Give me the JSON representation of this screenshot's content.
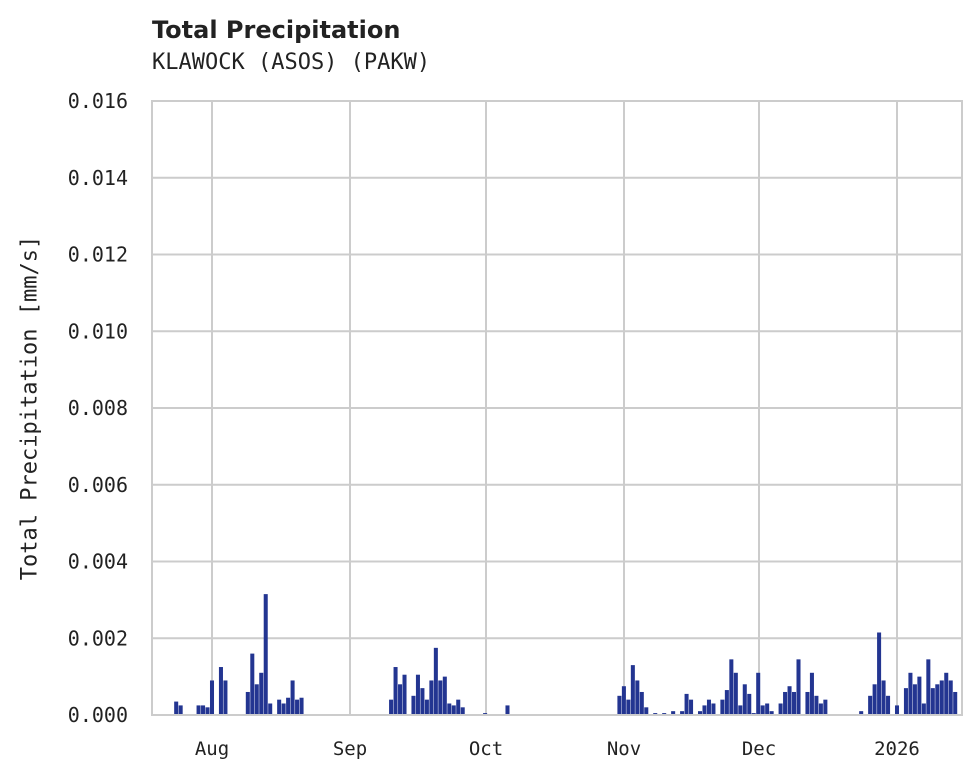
{
  "header": {
    "title": "Total Precipitation",
    "subtitle": "KLAWOCK (ASOS) (PAKW)"
  },
  "axes": {
    "ylabel": "Total Precipitation [mm/s]",
    "yticks": [
      "0.000",
      "0.002",
      "0.004",
      "0.006",
      "0.008",
      "0.010",
      "0.012",
      "0.014",
      "0.016"
    ],
    "xticks": [
      "Aug",
      "Sep",
      "Oct",
      "Nov",
      "Dec",
      "2026"
    ]
  },
  "colors": {
    "bar": "#233591",
    "grid": "#cccccc",
    "text": "#222222"
  },
  "chart_data": {
    "type": "bar",
    "title": "Total Precipitation",
    "subtitle": "KLAWOCK (ASOS) (PAKW)",
    "xlabel": "",
    "ylabel": "Total Precipitation [mm/s]",
    "ylim": [
      0,
      0.016
    ],
    "grid": true,
    "legend": null,
    "x_tick_labels": [
      "Aug",
      "Sep",
      "Oct",
      "Nov",
      "Dec",
      "2026"
    ],
    "x_range": [
      "2025-07-18",
      "2026-01-18"
    ],
    "series": [
      {
        "name": "Total Precipitation",
        "points": [
          [
            "2025-07-24",
            0.00035
          ],
          [
            "2025-07-25",
            0.00025
          ],
          [
            "2025-07-29",
            0.00025
          ],
          [
            "2025-07-30",
            0.00025
          ],
          [
            "2025-07-31",
            0.0002
          ],
          [
            "2025-08-01",
            0.0009
          ],
          [
            "2025-08-03",
            0.00125
          ],
          [
            "2025-08-04",
            0.0009
          ],
          [
            "2025-08-09",
            0.0006
          ],
          [
            "2025-08-10",
            0.0016
          ],
          [
            "2025-08-11",
            0.0008
          ],
          [
            "2025-08-12",
            0.0011
          ],
          [
            "2025-08-13",
            0.00315
          ],
          [
            "2025-08-14",
            0.0003
          ],
          [
            "2025-08-16",
            0.0004
          ],
          [
            "2025-08-17",
            0.0003
          ],
          [
            "2025-08-18",
            0.00045
          ],
          [
            "2025-08-19",
            0.0009
          ],
          [
            "2025-08-20",
            0.0004
          ],
          [
            "2025-08-21",
            0.00045
          ],
          [
            "2025-09-10",
            0.0004
          ],
          [
            "2025-09-11",
            0.00125
          ],
          [
            "2025-09-12",
            0.0008
          ],
          [
            "2025-09-13",
            0.00105
          ],
          [
            "2025-09-15",
            0.0005
          ],
          [
            "2025-09-16",
            0.00105
          ],
          [
            "2025-09-17",
            0.0007
          ],
          [
            "2025-09-18",
            0.0004
          ],
          [
            "2025-09-19",
            0.0009
          ],
          [
            "2025-09-20",
            0.00175
          ],
          [
            "2025-09-21",
            0.0009
          ],
          [
            "2025-09-22",
            0.001
          ],
          [
            "2025-09-23",
            0.0003
          ],
          [
            "2025-09-24",
            0.00025
          ],
          [
            "2025-09-25",
            0.0004
          ],
          [
            "2025-09-26",
            0.0002
          ],
          [
            "2025-10-01",
            5e-05
          ],
          [
            "2025-10-06",
            0.00025
          ],
          [
            "2025-10-31",
            0.0005
          ],
          [
            "2025-11-01",
            0.00075
          ],
          [
            "2025-11-02",
            0.0004
          ],
          [
            "2025-11-03",
            0.0013
          ],
          [
            "2025-11-04",
            0.0009
          ],
          [
            "2025-11-05",
            0.0006
          ],
          [
            "2025-11-06",
            0.0002
          ],
          [
            "2025-11-08",
            5e-05
          ],
          [
            "2025-11-10",
            5e-05
          ],
          [
            "2025-11-12",
            0.0001
          ],
          [
            "2025-11-14",
            0.0001
          ],
          [
            "2025-11-15",
            0.00055
          ],
          [
            "2025-11-16",
            0.0004
          ],
          [
            "2025-11-18",
            0.0001
          ],
          [
            "2025-11-19",
            0.00025
          ],
          [
            "2025-11-20",
            0.0004
          ],
          [
            "2025-11-21",
            0.0003
          ],
          [
            "2025-11-23",
            0.0004
          ],
          [
            "2025-11-24",
            0.00065
          ],
          [
            "2025-11-25",
            0.00145
          ],
          [
            "2025-11-26",
            0.0011
          ],
          [
            "2025-11-27",
            0.00025
          ],
          [
            "2025-11-28",
            0.0008
          ],
          [
            "2025-11-29",
            0.00055
          ],
          [
            "2025-11-30",
            5e-05
          ],
          [
            "2025-12-01",
            0.0011
          ],
          [
            "2025-12-02",
            0.00025
          ],
          [
            "2025-12-03",
            0.0003
          ],
          [
            "2025-12-04",
            0.0001
          ],
          [
            "2025-12-06",
            0.0003
          ],
          [
            "2025-12-07",
            0.0006
          ],
          [
            "2025-12-08",
            0.00075
          ],
          [
            "2025-12-09",
            0.0006
          ],
          [
            "2025-12-10",
            0.00145
          ],
          [
            "2025-12-12",
            0.0006
          ],
          [
            "2025-12-13",
            0.0011
          ],
          [
            "2025-12-14",
            0.0005
          ],
          [
            "2025-12-15",
            0.0003
          ],
          [
            "2025-12-16",
            0.0004
          ],
          [
            "2025-12-24",
            0.0001
          ],
          [
            "2025-12-26",
            0.0005
          ],
          [
            "2025-12-27",
            0.0008
          ],
          [
            "2025-12-28",
            0.00215
          ],
          [
            "2025-12-29",
            0.0009
          ],
          [
            "2025-12-30",
            0.0005
          ],
          [
            "2026-01-01",
            0.00025
          ],
          [
            "2026-01-03",
            0.0007
          ],
          [
            "2026-01-04",
            0.0011
          ],
          [
            "2026-01-05",
            0.0008
          ],
          [
            "2026-01-06",
            0.001
          ],
          [
            "2026-01-07",
            0.0003
          ],
          [
            "2026-01-08",
            0.00145
          ],
          [
            "2026-01-09",
            0.0007
          ],
          [
            "2026-01-10",
            0.0008
          ],
          [
            "2026-01-11",
            0.0009
          ],
          [
            "2026-01-12",
            0.0011
          ],
          [
            "2026-01-13",
            0.0009
          ],
          [
            "2026-01-14",
            0.0006
          ]
        ]
      }
    ]
  }
}
